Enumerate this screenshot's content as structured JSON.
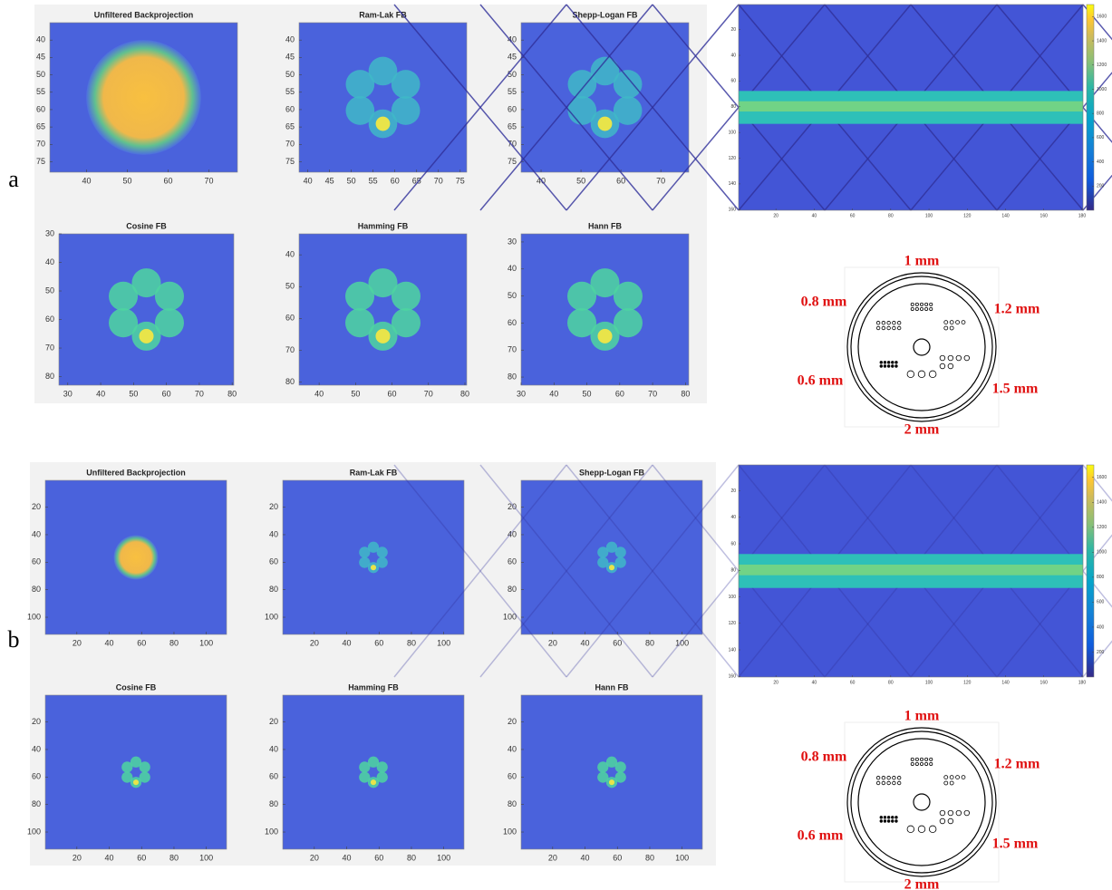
{
  "panels": [
    {
      "label": "a",
      "plots": [
        {
          "title": "Unfiltered Backprojection",
          "xlim": [
            31,
            77
          ],
          "ylim": [
            35,
            78
          ],
          "xticks": [
            40,
            50,
            60,
            70
          ],
          "yticks": [
            40,
            45,
            50,
            55,
            60,
            65,
            70,
            75
          ]
        },
        {
          "title": "Ram-Lak FB",
          "xlim": [
            38,
            76.5
          ],
          "ylim": [
            35,
            78
          ],
          "xticks": [
            40,
            45,
            50,
            55,
            60,
            65,
            70,
            75
          ],
          "yticks": [
            40,
            45,
            50,
            55,
            60,
            65,
            70,
            75
          ]
        },
        {
          "title": "Shepp-Logan FB",
          "xlim": [
            35,
            77
          ],
          "ylim": [
            35,
            78
          ],
          "xticks": [
            40,
            50,
            60,
            70
          ],
          "yticks": [
            40,
            45,
            50,
            55,
            60,
            65,
            70,
            75
          ]
        },
        {
          "title": "Cosine FB",
          "xlim": [
            27.3,
            80.5
          ],
          "ylim": [
            30,
            83
          ],
          "xticks": [
            30,
            40,
            50,
            60,
            70,
            80
          ],
          "yticks": [
            30,
            40,
            50,
            60,
            70,
            80
          ]
        },
        {
          "title": "Hamming FB",
          "xlim": [
            34.5,
            80.5
          ],
          "ylim": [
            33.4,
            81
          ],
          "xticks": [
            40,
            50,
            60,
            70,
            80
          ],
          "yticks": [
            40,
            50,
            60,
            70,
            80
          ]
        },
        {
          "title": "Hann FB",
          "xlim": [
            30,
            81
          ],
          "ylim": [
            27,
            83
          ],
          "xticks": [
            30,
            40,
            50,
            60,
            70,
            80
          ],
          "yticks": [
            30,
            40,
            50,
            60,
            70,
            80
          ]
        }
      ],
      "sinogram": {
        "xlim": [
          0.5,
          180.5
        ],
        "ylim": [
          0.5,
          160.5
        ],
        "xticks": [
          20,
          40,
          60,
          80,
          100,
          120,
          140,
          160,
          180
        ],
        "yticks": [
          20,
          40,
          60,
          80,
          100,
          120,
          140,
          160
        ],
        "clim": [
          0,
          1700
        ],
        "cticks": [
          200,
          400,
          600,
          800,
          1000,
          1200,
          1400,
          1600
        ]
      },
      "phantom": [
        "1 mm",
        "0.8 mm",
        "1.2 mm",
        "0.6 mm",
        "1.5 mm",
        "2 mm"
      ]
    },
    {
      "label": "b",
      "plots": [
        {
          "title": "Unfiltered Backprojection",
          "xlim": [
            0.5,
            112.5
          ],
          "ylim": [
            0.5,
            112.5
          ],
          "xticks": [
            20,
            40,
            60,
            80,
            100
          ],
          "yticks": [
            20,
            40,
            60,
            80,
            100
          ]
        },
        {
          "title": "Ram-Lak FB",
          "xlim": [
            0.5,
            112.5
          ],
          "ylim": [
            0.5,
            112.5
          ],
          "xticks": [
            20,
            40,
            60,
            80,
            100
          ],
          "yticks": [
            20,
            40,
            60,
            80,
            100
          ]
        },
        {
          "title": "Shepp-Logan FB",
          "xlim": [
            0.5,
            112.5
          ],
          "ylim": [
            0.5,
            112.5
          ],
          "xticks": [
            20,
            40,
            60,
            80,
            100
          ],
          "yticks": [
            20,
            40,
            60,
            80,
            100
          ]
        },
        {
          "title": "Cosine FB",
          "xlim": [
            0.5,
            112.5
          ],
          "ylim": [
            0.5,
            112.5
          ],
          "xticks": [
            20,
            40,
            60,
            80,
            100
          ],
          "yticks": [
            20,
            40,
            60,
            80,
            100
          ]
        },
        {
          "title": "Hamming FB",
          "xlim": [
            0.5,
            112.5
          ],
          "ylim": [
            0.5,
            112.5
          ],
          "xticks": [
            20,
            40,
            60,
            80,
            100
          ],
          "yticks": [
            20,
            40,
            60,
            80,
            100
          ]
        },
        {
          "title": "Hann FB",
          "xlim": [
            0.5,
            112.5
          ],
          "ylim": [
            0.5,
            112.5
          ],
          "xticks": [
            20,
            40,
            60,
            80,
            100
          ],
          "yticks": [
            20,
            40,
            60,
            80,
            100
          ]
        }
      ],
      "sinogram": {
        "xlim": [
          0.5,
          180.5
        ],
        "ylim": [
          0.5,
          160.5
        ],
        "xticks": [
          20,
          40,
          60,
          80,
          100,
          120,
          140,
          160,
          180
        ],
        "yticks": [
          20,
          40,
          60,
          80,
          100,
          120,
          140,
          160
        ],
        "clim": [
          0,
          1700
        ],
        "cticks": [
          200,
          400,
          600,
          800,
          1000,
          1200,
          1400,
          1600
        ]
      },
      "phantom": [
        "1 mm",
        "0.8 mm",
        "1.2 mm",
        "0.6 mm",
        "1.5 mm",
        "2 mm"
      ]
    }
  ]
}
